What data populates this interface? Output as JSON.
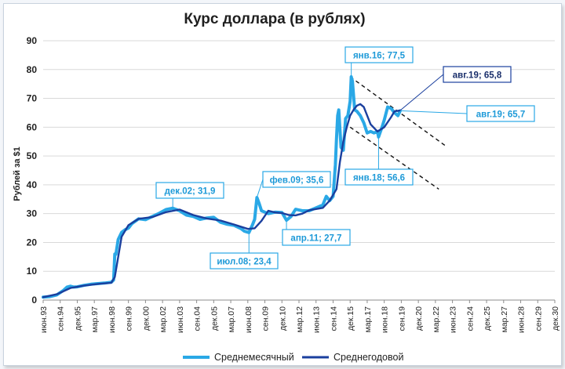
{
  "chart_data": {
    "type": "line",
    "title": "Курс доллара (в рублях)",
    "ylabel": "Рублей за $1",
    "xlabel": "",
    "ylim": [
      0,
      90
    ],
    "yticks": [
      0,
      10,
      20,
      30,
      40,
      50,
      60,
      70,
      80,
      90
    ],
    "x_start": "1993-06",
    "x_end": "2030-12",
    "grid": "horizontal",
    "legend_position": "bottom",
    "x_ticks": [
      "июн.93",
      "сен.94",
      "дек.95",
      "мар.97",
      "июн.98",
      "сен.99",
      "дек.00",
      "мар.02",
      "июн.03",
      "сен.04",
      "дек.05",
      "мар.07",
      "июн.08",
      "сен.09",
      "дек.10",
      "мар.12",
      "июн.13",
      "сен.14",
      "дек.15",
      "мар.17",
      "июн.18",
      "сен.19",
      "дек.20",
      "мар.22",
      "июн.23",
      "сен.24",
      "дек.25",
      "мар.27",
      "июн.28",
      "сен.29",
      "дек.30"
    ],
    "series": [
      {
        "name": "Среднемесячный",
        "color": "#2aa8e6",
        "x": [
          "1993-06",
          "1993-12",
          "1994-06",
          "1994-12",
          "1995-03",
          "1995-06",
          "1995-09",
          "1995-12",
          "1996-06",
          "1996-12",
          "1997-06",
          "1997-12",
          "1998-06",
          "1998-08",
          "1998-09",
          "1998-10",
          "1998-12",
          "1999-03",
          "1999-06",
          "1999-09",
          "1999-12",
          "2000-06",
          "2000-12",
          "2001-06",
          "2001-12",
          "2002-06",
          "2002-12",
          "2003-06",
          "2003-12",
          "2004-06",
          "2004-12",
          "2005-06",
          "2005-12",
          "2006-06",
          "2006-12",
          "2007-06",
          "2007-12",
          "2008-03",
          "2008-07",
          "2008-10",
          "2008-12",
          "2009-02",
          "2009-04",
          "2009-06",
          "2009-09",
          "2009-12",
          "2010-06",
          "2010-12",
          "2011-04",
          "2011-08",
          "2011-12",
          "2012-06",
          "2012-12",
          "2013-06",
          "2013-12",
          "2014-03",
          "2014-06",
          "2014-09",
          "2014-11",
          "2014-12",
          "2015-01",
          "2015-02",
          "2015-04",
          "2015-06",
          "2015-08",
          "2015-10",
          "2015-12",
          "2016-01",
          "2016-02",
          "2016-04",
          "2016-06",
          "2016-09",
          "2016-12",
          "2017-03",
          "2017-06",
          "2017-09",
          "2017-12",
          "2018-01",
          "2018-04",
          "2018-06",
          "2018-09",
          "2018-12",
          "2019-03",
          "2019-06",
          "2019-08"
        ],
        "values": [
          1.0,
          1.2,
          1.8,
          3.4,
          4.5,
          4.8,
          4.5,
          4.6,
          5.1,
          5.5,
          5.7,
          5.9,
          6.2,
          7.0,
          16.0,
          15.9,
          21.0,
          23.5,
          24.4,
          25.0,
          26.5,
          28.2,
          27.9,
          29.0,
          30.1,
          31.4,
          31.9,
          31.0,
          29.5,
          29.0,
          28.0,
          28.5,
          28.7,
          27.0,
          26.3,
          25.9,
          24.8,
          23.9,
          23.4,
          26.0,
          28.0,
          35.6,
          33.5,
          31.0,
          30.5,
          30.0,
          30.5,
          30.4,
          27.7,
          29.0,
          31.5,
          31.0,
          31.0,
          32.0,
          33.0,
          36.0,
          34.5,
          36.0,
          47.0,
          56.0,
          64.0,
          66.0,
          53.0,
          52.0,
          63.0,
          64.0,
          69.0,
          77.5,
          76.0,
          66.0,
          65.5,
          64.0,
          61.5,
          58.0,
          58.5,
          58.0,
          58.5,
          56.6,
          60.0,
          62.5,
          67.0,
          66.5,
          65.0,
          64.0,
          65.7
        ]
      },
      {
        "name": "Среднегодовой",
        "color": "#1a3f9e",
        "x": [
          "1993-06",
          "1994-06",
          "1995-06",
          "1996-06",
          "1997-06",
          "1998-06",
          "1998-09",
          "1999-03",
          "1999-09",
          "2000-06",
          "2001-06",
          "2002-06",
          "2003-06",
          "2004-06",
          "2005-06",
          "2006-06",
          "2007-06",
          "2008-06",
          "2008-12",
          "2009-06",
          "2009-12",
          "2010-06",
          "2010-12",
          "2011-06",
          "2011-12",
          "2012-06",
          "2012-12",
          "2013-06",
          "2013-12",
          "2014-06",
          "2014-12",
          "2015-03",
          "2015-06",
          "2015-09",
          "2015-12",
          "2016-03",
          "2016-06",
          "2016-09",
          "2016-12",
          "2017-06",
          "2017-12",
          "2018-06",
          "2018-12",
          "2019-03",
          "2019-08"
        ],
        "values": [
          1.0,
          2.0,
          4.2,
          5.0,
          5.6,
          6.0,
          8.0,
          22.0,
          26.0,
          28.2,
          28.8,
          30.5,
          31.4,
          29.5,
          28.3,
          27.6,
          26.2,
          24.7,
          24.9,
          27.5,
          31.0,
          30.4,
          30.2,
          29.5,
          29.4,
          30.0,
          31.2,
          31.6,
          32.0,
          34.5,
          38.5,
          48.0,
          55.0,
          60.0,
          64.0,
          66.0,
          67.5,
          68.0,
          67.0,
          61.0,
          58.5,
          60.0,
          63.5,
          65.5,
          65.8
        ]
      }
    ],
    "trendlines": [
      {
        "from": [
          "2015-12",
          77.5
        ],
        "to": [
          "2022-12",
          53.5
        ]
      },
      {
        "from": [
          "2015-12",
          60.0
        ],
        "to": [
          "2022-06",
          38.5
        ]
      }
    ],
    "annotations": [
      {
        "label": "янв.16; 77,5",
        "at": [
          "2016-01",
          77.5
        ]
      },
      {
        "label": "авг.19; 65,8",
        "at": [
          "2019-08",
          65.8
        ]
      },
      {
        "label": "авг.19; 65,7",
        "at": [
          "2019-08",
          65.7
        ]
      },
      {
        "label": "янв.18; 56,6",
        "at": [
          "2018-01",
          56.6
        ]
      },
      {
        "label": "фев.09; 35,6",
        "at": [
          "2009-02",
          35.6
        ]
      },
      {
        "label": "дек.02; 31,9",
        "at": [
          "2002-12",
          31.9
        ]
      },
      {
        "label": "апр.11; 27,7",
        "at": [
          "2011-04",
          27.7
        ]
      },
      {
        "label": "июл.08; 23,4",
        "at": [
          "2008-07",
          23.4
        ]
      }
    ]
  }
}
